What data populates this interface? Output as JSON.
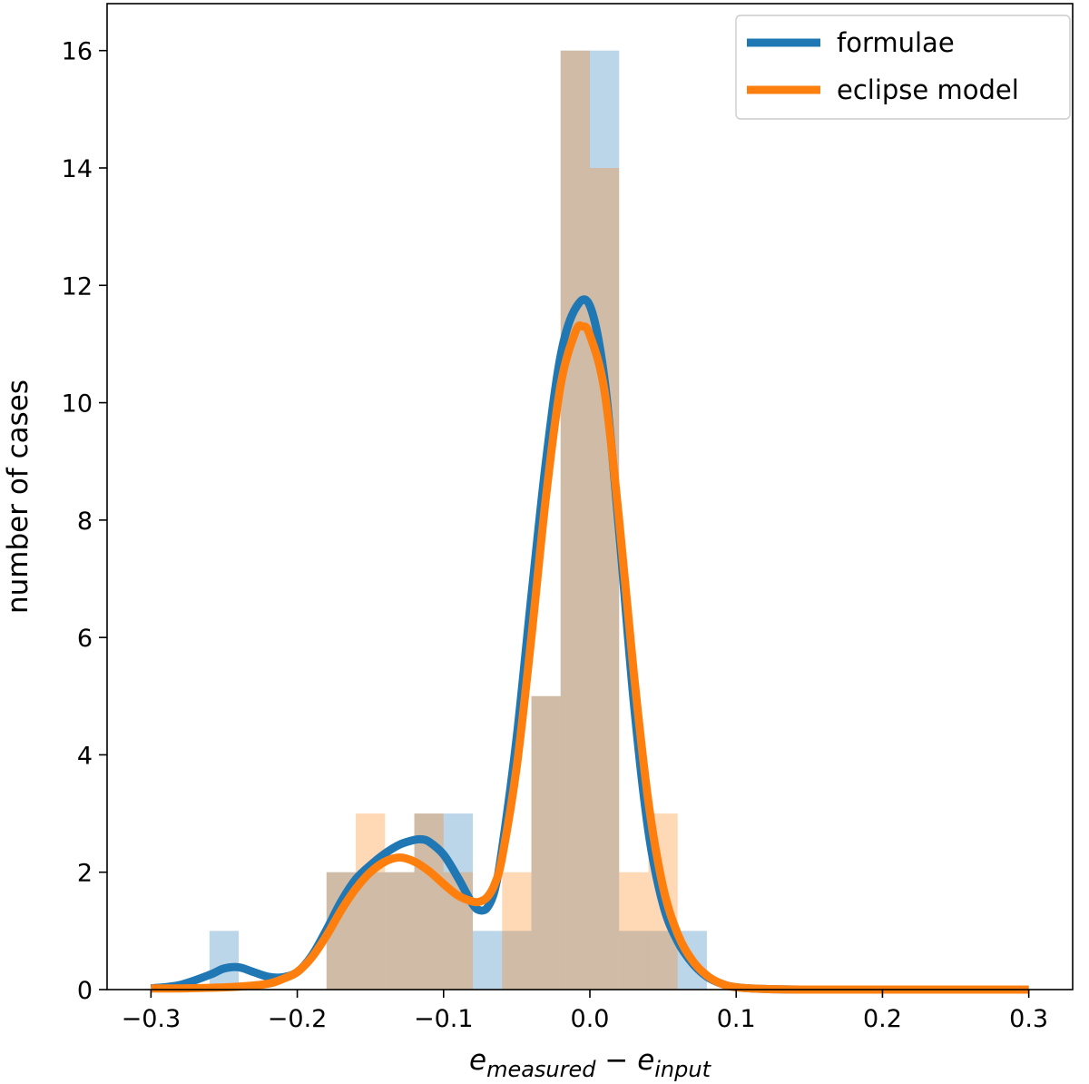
{
  "chart_data": {
    "type": "bar",
    "xlabel": {
      "main": "e",
      "sub1": "measured",
      "minus": " − ",
      "main2": "e",
      "sub2": "input"
    },
    "ylabel": "number of cases",
    "xlim": [
      -0.33,
      0.33
    ],
    "ylim": [
      0,
      16.8
    ],
    "xticks": [
      -0.3,
      -0.2,
      -0.1,
      0.0,
      0.1,
      0.2,
      0.3
    ],
    "xtick_labels": [
      "−0.3",
      "−0.2",
      "−0.1",
      "0.0",
      "0.1",
      "0.2",
      "0.3"
    ],
    "yticks": [
      0,
      2,
      4,
      6,
      8,
      10,
      12,
      14,
      16
    ],
    "ytick_labels": [
      "0",
      "2",
      "4",
      "6",
      "8",
      "10",
      "12",
      "14",
      "16"
    ],
    "legend_position": "top-right",
    "bin_width": 0.02,
    "series": [
      {
        "name": "formulae",
        "color": "#1f77b4",
        "histogram": [
          {
            "x0": -0.26,
            "count": 1
          },
          {
            "x0": -0.18,
            "count": 2
          },
          {
            "x0": -0.16,
            "count": 2
          },
          {
            "x0": -0.14,
            "count": 2
          },
          {
            "x0": -0.12,
            "count": 3
          },
          {
            "x0": -0.1,
            "count": 3
          },
          {
            "x0": -0.08,
            "count": 1
          },
          {
            "x0": -0.06,
            "count": 1
          },
          {
            "x0": -0.04,
            "count": 5
          },
          {
            "x0": -0.02,
            "count": 16
          },
          {
            "x0": 0.0,
            "count": 16
          },
          {
            "x0": 0.02,
            "count": 1
          },
          {
            "x0": 0.04,
            "count": 1
          },
          {
            "x0": 0.06,
            "count": 1
          }
        ],
        "kde": {
          "x": [
            -0.3,
            -0.28,
            -0.26,
            -0.25,
            -0.24,
            -0.23,
            -0.22,
            -0.21,
            -0.2,
            -0.19,
            -0.18,
            -0.17,
            -0.16,
            -0.15,
            -0.14,
            -0.13,
            -0.12,
            -0.115,
            -0.11,
            -0.1,
            -0.09,
            -0.08,
            -0.075,
            -0.07,
            -0.065,
            -0.06,
            -0.05,
            -0.04,
            -0.03,
            -0.02,
            -0.01,
            0.0,
            0.01,
            0.02,
            0.03,
            0.04,
            0.05,
            0.06,
            0.07,
            0.08,
            0.09,
            0.1,
            0.12,
            0.15,
            0.2,
            0.25,
            0.3
          ],
          "y": [
            0.02,
            0.08,
            0.25,
            0.36,
            0.38,
            0.3,
            0.22,
            0.21,
            0.3,
            0.58,
            1.02,
            1.5,
            1.88,
            2.12,
            2.32,
            2.47,
            2.55,
            2.56,
            2.52,
            2.3,
            1.9,
            1.45,
            1.35,
            1.4,
            1.7,
            2.4,
            4.3,
            6.7,
            9.0,
            10.8,
            11.6,
            11.65,
            10.4,
            7.8,
            4.9,
            2.7,
            1.45,
            0.82,
            0.45,
            0.22,
            0.1,
            0.04,
            0.01,
            0.0,
            0.0,
            0.0,
            0.0
          ]
        }
      },
      {
        "name": "eclipse model",
        "color": "#ff7f0e",
        "histogram": [
          {
            "x0": -0.18,
            "count": 2
          },
          {
            "x0": -0.16,
            "count": 3
          },
          {
            "x0": -0.14,
            "count": 2
          },
          {
            "x0": -0.12,
            "count": 3
          },
          {
            "x0": -0.1,
            "count": 2
          },
          {
            "x0": -0.08,
            "count": 0
          },
          {
            "x0": -0.06,
            "count": 2
          },
          {
            "x0": -0.04,
            "count": 5
          },
          {
            "x0": -0.02,
            "count": 16
          },
          {
            "x0": 0.0,
            "count": 14
          },
          {
            "x0": 0.02,
            "count": 2
          },
          {
            "x0": 0.04,
            "count": 3
          }
        ],
        "kde": {
          "x": [
            -0.3,
            -0.28,
            -0.26,
            -0.24,
            -0.22,
            -0.21,
            -0.2,
            -0.19,
            -0.18,
            -0.17,
            -0.16,
            -0.15,
            -0.14,
            -0.13,
            -0.12,
            -0.11,
            -0.1,
            -0.09,
            -0.08,
            -0.075,
            -0.07,
            -0.065,
            -0.06,
            -0.05,
            -0.04,
            -0.03,
            -0.02,
            -0.01,
            -0.005,
            0.0,
            0.01,
            0.02,
            0.03,
            0.04,
            0.05,
            0.06,
            0.07,
            0.08,
            0.09,
            0.1,
            0.12,
            0.15,
            0.2,
            0.25,
            0.3
          ],
          "y": [
            0.02,
            0.02,
            0.03,
            0.05,
            0.1,
            0.18,
            0.3,
            0.55,
            0.92,
            1.35,
            1.72,
            2.0,
            2.18,
            2.25,
            2.18,
            2.02,
            1.8,
            1.6,
            1.5,
            1.5,
            1.58,
            1.8,
            2.25,
            3.8,
            6.0,
            8.4,
            10.3,
            11.2,
            11.3,
            11.15,
            10.2,
            8.0,
            5.4,
            3.2,
            1.75,
            0.95,
            0.5,
            0.24,
            0.1,
            0.04,
            0.01,
            0.0,
            0.0,
            0.0,
            0.0
          ]
        }
      }
    ]
  }
}
